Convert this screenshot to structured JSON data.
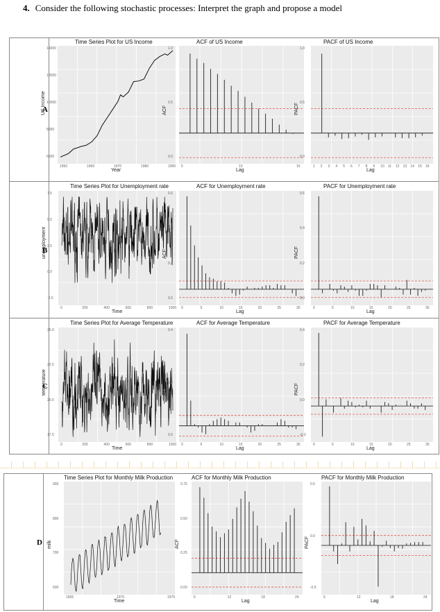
{
  "question": {
    "number": "4.",
    "text": "Consider the following stochastic processes: Interpret the graph and propose a model"
  },
  "rows": [
    {
      "label": "A",
      "panels": [
        {
          "title": "Time Series Plot for US Income",
          "xlabel": "Year",
          "ylabel": "US Income",
          "yticks": [
            "14000",
            "12000",
            "10000",
            "8000",
            "6000"
          ],
          "xticks": [
            "1950",
            "1960",
            "1970",
            "1980",
            "1990"
          ]
        },
        {
          "title": "ACF of US Income",
          "xlabel": "Lag",
          "ylabel": "ACF",
          "yticks": [
            "1.0",
            "0.5",
            "0.0"
          ],
          "xticks": [
            "5",
            "10",
            "15"
          ]
        },
        {
          "title": "PACF of US Income",
          "xlabel": "Lag",
          "ylabel": "PACF",
          "yticks": [
            "1.0",
            "0.5",
            "0.0"
          ],
          "xticks": [
            "1",
            "2",
            "3",
            "4",
            "5",
            "6",
            "7",
            "8",
            "9",
            "10",
            "11",
            "12",
            "13",
            "14",
            "15",
            "16"
          ]
        }
      ]
    },
    {
      "label": "B",
      "panels": [
        {
          "title": "Time Series Plot for Unemployment rate",
          "xlabel": "Time",
          "ylabel": "unemployment",
          "yticks": [
            "7.5",
            "5.0",
            "2.5",
            "0.0",
            "-2.5"
          ],
          "xticks": [
            "0",
            "200",
            "400",
            "600",
            "800",
            "1000"
          ]
        },
        {
          "title": "ACF for Unemployment rate",
          "xlabel": "Lag",
          "ylabel": "ACF",
          "yticks": [
            "0.6",
            "0.4",
            "0.2",
            "0.0"
          ],
          "xticks": [
            "0",
            "5",
            "10",
            "15",
            "20",
            "25",
            "30"
          ]
        },
        {
          "title": "PACF for Unemployment rate",
          "xlabel": "Lag",
          "ylabel": "PACF",
          "yticks": [
            "0.6",
            "0.4",
            "0.2",
            "0.0"
          ],
          "xticks": [
            "0",
            "5",
            "10",
            "15",
            "20",
            "25",
            "30"
          ]
        }
      ]
    },
    {
      "label": "C",
      "panels": [
        {
          "title": "Time Series Plot for Average Temperature",
          "xlabel": "Time",
          "ylabel": "temperature",
          "yticks": [
            "25.0",
            "22.5",
            "20.0",
            "17.5"
          ],
          "xticks": [
            "0",
            "200",
            "400",
            "600",
            "800",
            "1000"
          ]
        },
        {
          "title": "ACF for Average Temperature",
          "xlabel": "Lag",
          "ylabel": "ACF",
          "yticks": [
            "0.4",
            "0.2",
            "0.0"
          ],
          "xticks": [
            "0",
            "5",
            "10",
            "15",
            "20",
            "25",
            "30"
          ]
        },
        {
          "title": "PACF for Average Temperature",
          "xlabel": "Lag",
          "ylabel": "PACF",
          "yticks": [
            "0.4",
            "0.2",
            "0.0",
            "-0.2"
          ],
          "xticks": [
            "0",
            "5",
            "10",
            "15",
            "20",
            "25",
            "30"
          ]
        }
      ]
    },
    {
      "label": "D",
      "panels": [
        {
          "title": "Time Series Plot for Monthly Milk Production",
          "xlabel": "Time",
          "ylabel": "milk",
          "yticks": [
            "900",
            "800",
            "700",
            "600"
          ],
          "xticks": [
            "1965",
            "1970",
            "1975"
          ]
        },
        {
          "title": "ACF for  Monthly Milk Production",
          "xlabel": "Lag",
          "ylabel": "ACF",
          "yticks": [
            "0.75",
            "0.50",
            "0.25",
            "0.00"
          ],
          "xticks": [
            "6",
            "12",
            "18",
            "24"
          ]
        },
        {
          "title": "PACF for  Monthly Milk Production",
          "xlabel": "Lag",
          "ylabel": "PACF",
          "yticks": [
            "0.5",
            "0.0",
            "-0.5"
          ],
          "xticks": [
            "6",
            "12",
            "18",
            "24"
          ]
        }
      ]
    }
  ],
  "chart_data": [
    {
      "type": "line",
      "title": "Time Series Plot for US Income",
      "xlabel": "Year",
      "ylabel": "US Income",
      "xlim": [
        1950,
        1993
      ],
      "ylim": [
        6000,
        14500
      ],
      "x": [
        1950,
        1953,
        1955,
        1958,
        1960,
        1962,
        1964,
        1966,
        1968,
        1970,
        1972,
        1973,
        1974,
        1976,
        1978,
        1980,
        1982,
        1984,
        1986,
        1988,
        1990,
        1991,
        1993
      ],
      "y": [
        6300,
        6550,
        6900,
        7100,
        7200,
        7450,
        7900,
        8700,
        9300,
        9900,
        10500,
        11000,
        10850,
        11200,
        12000,
        12050,
        12200,
        13000,
        13600,
        13900,
        14100,
        14000,
        14350
      ]
    },
    {
      "type": "bar",
      "title": "ACF of US Income",
      "xlabel": "Lag",
      "ylabel": "ACF",
      "ylim": [
        -0.33,
        1.0
      ],
      "conf_band": 0.29,
      "x": [
        1,
        2,
        3,
        4,
        5,
        6,
        7,
        8,
        9,
        10,
        11,
        12,
        13,
        14,
        15,
        16
      ],
      "y": [
        0.94,
        0.88,
        0.83,
        0.76,
        0.7,
        0.63,
        0.56,
        0.5,
        0.43,
        0.36,
        0.29,
        0.23,
        0.17,
        0.1,
        0.04,
        -0.01
      ]
    },
    {
      "type": "bar",
      "title": "PACF of US Income",
      "xlabel": "Lag",
      "ylabel": "PACF",
      "ylim": [
        -0.33,
        1.0
      ],
      "conf_band": 0.29,
      "x": [
        1,
        2,
        3,
        4,
        5,
        6,
        7,
        8,
        9,
        10,
        11,
        12,
        13,
        14,
        15,
        16
      ],
      "y": [
        0.94,
        -0.05,
        -0.03,
        -0.07,
        -0.06,
        -0.04,
        -0.02,
        -0.08,
        -0.05,
        -0.04,
        0.0,
        -0.05,
        -0.06,
        -0.06,
        -0.05,
        -0.03
      ]
    },
    {
      "type": "line",
      "title": "Time Series Plot for Unemployment rate",
      "xlabel": "Time",
      "ylabel": "unemployment",
      "xlim": [
        0,
        1000
      ],
      "ylim": [
        -2.5,
        7.5
      ],
      "mean": 3.5,
      "range": [
        -2.1,
        7.2
      ],
      "n": 1000
    },
    {
      "type": "bar",
      "title": "ACF for Unemployment rate",
      "xlabel": "Lag",
      "ylabel": "ACF",
      "ylim": [
        -0.1,
        0.72
      ],
      "conf_band": 0.062,
      "x": [
        1,
        2,
        3,
        4,
        5,
        6,
        7,
        8,
        9,
        10,
        11,
        12,
        13,
        14,
        15,
        16,
        17,
        18,
        19,
        20,
        21,
        22,
        23,
        24,
        25,
        26,
        27,
        28,
        29,
        30
      ],
      "y": [
        0.7,
        0.48,
        0.33,
        0.24,
        0.18,
        0.12,
        0.09,
        0.08,
        0.06,
        0.06,
        0.05,
        0.01,
        -0.03,
        -0.05,
        -0.04,
        -0.01,
        0.02,
        0.0,
        0.01,
        0.01,
        0.02,
        0.03,
        0.03,
        0.01,
        0.04,
        0.03,
        0.03,
        0.0,
        -0.03,
        -0.05
      ]
    },
    {
      "type": "bar",
      "title": "PACF for Unemployment rate",
      "xlabel": "Lag",
      "ylabel": "PACF",
      "ylim": [
        -0.1,
        0.72
      ],
      "conf_band": 0.062,
      "x": [
        1,
        2,
        3,
        4,
        5,
        6,
        7,
        8,
        9,
        10,
        11,
        12,
        13,
        14,
        15,
        16,
        17,
        18,
        19,
        20,
        21,
        22,
        23,
        24,
        25,
        26,
        27,
        28,
        29,
        30
      ],
      "y": [
        0.7,
        -0.03,
        0.0,
        0.04,
        -0.01,
        -0.03,
        0.03,
        0.02,
        -0.02,
        0.03,
        -0.01,
        -0.05,
        -0.05,
        -0.01,
        0.04,
        0.04,
        0.03,
        -0.06,
        0.03,
        0.0,
        0.0,
        0.02,
        0.01,
        -0.04,
        0.07,
        -0.04,
        0.01,
        -0.05,
        -0.02,
        -0.01
      ]
    },
    {
      "type": "line",
      "title": "Time Series Plot for Average Temperature",
      "xlabel": "Time",
      "ylabel": "temperature",
      "xlim": [
        0,
        1000
      ],
      "ylim": [
        16,
        25.2
      ],
      "mean": 20.0,
      "range": [
        16.2,
        25.0
      ],
      "n": 1000
    },
    {
      "type": "bar",
      "title": "ACF for Average Temperature",
      "xlabel": "Lag",
      "ylabel": "ACF",
      "ylim": [
        -0.08,
        0.57
      ],
      "conf_band": 0.062,
      "x": [
        1,
        2,
        3,
        4,
        5,
        6,
        7,
        8,
        9,
        10,
        11,
        12,
        13,
        14,
        15,
        16,
        17,
        18,
        19,
        20,
        21,
        22,
        23,
        24,
        25,
        26,
        27,
        28,
        29,
        30
      ],
      "y": [
        0.55,
        0.15,
        0.01,
        -0.01,
        -0.04,
        -0.05,
        0.01,
        0.03,
        0.04,
        0.05,
        0.04,
        0.03,
        0.0,
        0.02,
        0.02,
        0.0,
        -0.01,
        -0.04,
        -0.03,
        0.01,
        0.01,
        0.0,
        0.0,
        0.0,
        0.02,
        0.04,
        0.03,
        -0.01,
        -0.01,
        -0.02
      ]
    },
    {
      "type": "bar",
      "title": "PACF for Average Temperature",
      "xlabel": "Lag",
      "ylabel": "PACF",
      "ylim": [
        -0.25,
        0.57
      ],
      "conf_band": 0.062,
      "x": [
        1,
        2,
        3,
        4,
        5,
        6,
        7,
        8,
        9,
        10,
        11,
        12,
        13,
        14,
        15,
        16,
        17,
        18,
        19,
        20,
        21,
        22,
        23,
        24,
        25,
        26,
        27,
        28,
        29,
        30
      ],
      "y": [
        0.55,
        -0.23,
        0.05,
        0.0,
        -0.05,
        0.0,
        0.06,
        -0.02,
        0.04,
        0.03,
        -0.01,
        0.01,
        -0.01,
        0.04,
        -0.02,
        0.0,
        0.0,
        -0.05,
        0.03,
        0.02,
        -0.03,
        0.01,
        0.0,
        0.0,
        0.04,
        0.02,
        -0.02,
        -0.02,
        0.02,
        -0.03
      ]
    },
    {
      "type": "line",
      "title": "Time Series Plot for Monthly Milk Production",
      "xlabel": "Time",
      "ylabel": "milk",
      "xlim": [
        1962,
        1976
      ],
      "ylim": [
        540,
        980
      ],
      "trend_start": 600,
      "trend_end": 850,
      "seasonal_amplitude": 75,
      "period_months": 12
    },
    {
      "type": "bar",
      "title": "ACF for  Monthly Milk Production",
      "xlabel": "Lag",
      "ylabel": "ACF",
      "ylim": [
        -0.2,
        0.92
      ],
      "conf_band": 0.15,
      "x": [
        1,
        2,
        3,
        4,
        5,
        6,
        7,
        8,
        9,
        10,
        11,
        12,
        13,
        14,
        15,
        16,
        17,
        18,
        19,
        20,
        21,
        22,
        23,
        24
      ],
      "y": [
        0.89,
        0.78,
        0.62,
        0.48,
        0.43,
        0.37,
        0.41,
        0.45,
        0.56,
        0.68,
        0.77,
        0.85,
        0.74,
        0.64,
        0.49,
        0.36,
        0.31,
        0.25,
        0.29,
        0.32,
        0.42,
        0.53,
        0.6,
        0.67
      ]
    },
    {
      "type": "bar",
      "title": "PACF for  Monthly Milk Production",
      "xlabel": "Lag",
      "ylabel": "PACF",
      "ylim": [
        -0.7,
        0.92
      ],
      "conf_band": 0.15,
      "x": [
        1,
        2,
        3,
        4,
        5,
        6,
        7,
        8,
        9,
        10,
        11,
        12,
        13,
        14,
        15,
        16,
        17,
        18,
        19,
        20,
        21,
        22,
        23,
        24
      ],
      "y": [
        0.89,
        -0.09,
        -0.28,
        0.03,
        0.35,
        -0.09,
        0.28,
        0.09,
        0.4,
        0.3,
        0.06,
        0.22,
        -0.62,
        -0.02,
        0.07,
        -0.04,
        -0.09,
        -0.04,
        -0.05,
        0.03,
        0.04,
        0.05,
        0.05,
        0.05
      ]
    }
  ]
}
